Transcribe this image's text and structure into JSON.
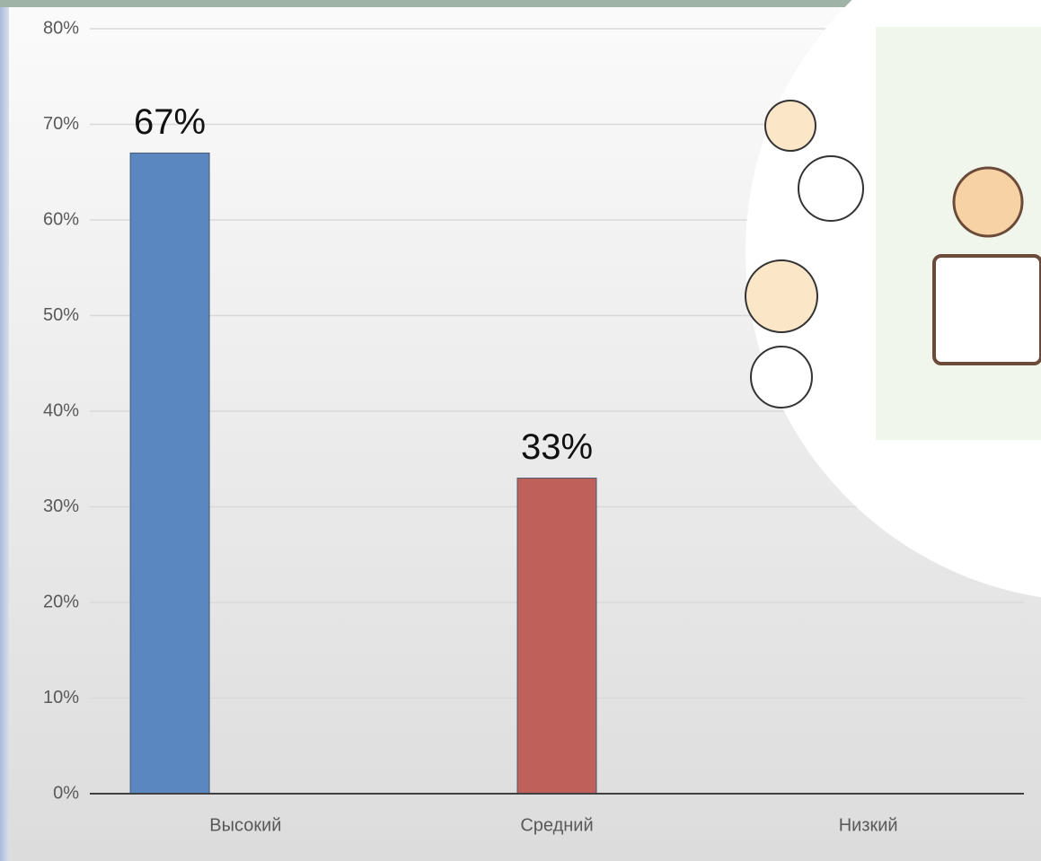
{
  "chart_data": {
    "type": "bar",
    "categories": [
      "Высокий",
      "Средний",
      "Низкий"
    ],
    "values": [
      67,
      33,
      0
    ],
    "value_labels": [
      "67%",
      "33%",
      null
    ],
    "colors": [
      "#5b87c1",
      "#c0605a",
      "#8faa55"
    ],
    "ylim": [
      0,
      80
    ],
    "yticks": [
      {
        "value": 0,
        "label": "0%"
      },
      {
        "value": 10,
        "label": "10%"
      },
      {
        "value": 20,
        "label": "20%"
      },
      {
        "value": 30,
        "label": "30%"
      },
      {
        "value": 40,
        "label": "40%"
      },
      {
        "value": 50,
        "label": "50%"
      },
      {
        "value": 60,
        "label": "60%"
      },
      {
        "value": 70,
        "label": "70%"
      },
      {
        "value": 80,
        "label": "80%"
      }
    ],
    "grid": true
  }
}
